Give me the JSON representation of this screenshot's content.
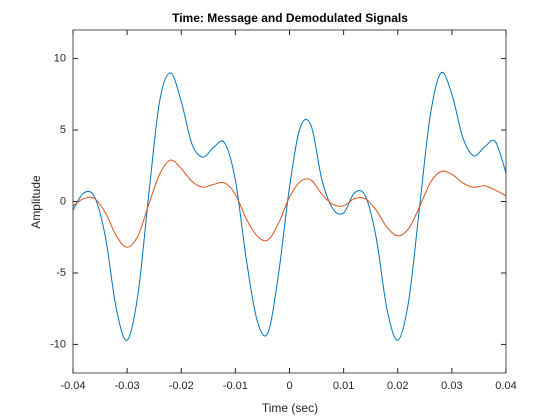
{
  "chart_data": {
    "type": "line",
    "title": "Time: Message and Demodulated Signals",
    "xlabel": "Time (sec)",
    "ylabel": "Amplitude",
    "x": [
      -0.04,
      -0.038,
      -0.036,
      -0.034,
      -0.032,
      -0.03,
      -0.028,
      -0.026,
      -0.024,
      -0.022,
      -0.02,
      -0.018,
      -0.016,
      -0.014,
      -0.012,
      -0.01,
      -0.008,
      -0.006,
      -0.004,
      -0.002,
      0,
      0.002,
      0.004,
      0.006,
      0.008,
      0.01,
      0.012,
      0.014,
      0.016,
      0.018,
      0.02,
      0.022,
      0.024,
      0.026,
      0.028,
      0.03,
      0.032,
      0.034,
      0.036,
      0.038,
      0.04
    ],
    "series": [
      {
        "color": "#0072BD",
        "values": [
          -0.6,
          0.6,
          0.3,
          -2.5,
          -7.5,
          -9.7,
          -6.5,
          0.5,
          7.0,
          9.0,
          7.0,
          4.0,
          3.1,
          3.8,
          4.1,
          1.5,
          -4.0,
          -8.3,
          -9.2,
          -5.0,
          1.0,
          5.2,
          5.3,
          1.5,
          -0.5,
          -0.8,
          0.6,
          0.4,
          -2.5,
          -7.5,
          -9.7,
          -7.0,
          -0.5,
          6.0,
          9.0,
          7.5,
          4.5,
          3.2,
          3.8,
          4.2,
          2.0
        ]
      },
      {
        "color": "#D95319",
        "values": [
          -0.3,
          0.2,
          0.2,
          -0.8,
          -2.4,
          -3.2,
          -2.4,
          -0.2,
          1.9,
          2.9,
          2.3,
          1.4,
          1.0,
          1.2,
          1.3,
          0.5,
          -1.2,
          -2.4,
          -2.7,
          -1.5,
          0.3,
          1.4,
          1.5,
          0.5,
          -0.2,
          -0.3,
          0.2,
          0.2,
          -0.6,
          -1.8,
          -2.4,
          -1.9,
          -0.4,
          1.3,
          2.1,
          1.9,
          1.3,
          1.0,
          1.1,
          0.8,
          0.4
        ]
      }
    ],
    "xlim": [
      -0.04,
      0.04
    ],
    "xticks": [
      -0.04,
      -0.03,
      -0.02,
      -0.01,
      0,
      0.01,
      0.02,
      0.03,
      0.04
    ],
    "ylim": [
      -12,
      12
    ],
    "yticks": [
      -10,
      -5,
      0,
      5,
      10
    ],
    "grid": false
  }
}
